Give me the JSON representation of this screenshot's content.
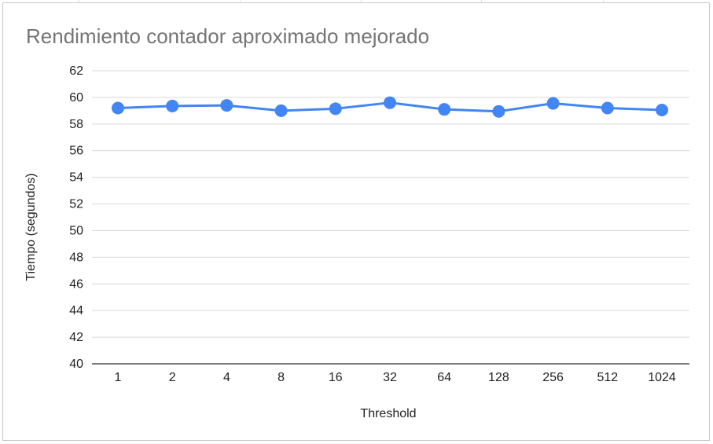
{
  "chart_data": {
    "type": "line",
    "title": "Rendimiento contador aproximado mejorado",
    "xlabel": "Threshold",
    "ylabel": "Tiempo (segundos)",
    "categories": [
      "1",
      "2",
      "4",
      "8",
      "16",
      "32",
      "64",
      "128",
      "256",
      "512",
      "1024"
    ],
    "series": [
      {
        "values": [
          59.2,
          59.35,
          59.4,
          59.0,
          59.15,
          59.6,
          59.1,
          58.95,
          59.55,
          59.2,
          59.05
        ],
        "color": "#4285f4"
      }
    ],
    "ylim": [
      40,
      62
    ],
    "yticks": [
      "40",
      "42",
      "44",
      "46",
      "48",
      "50",
      "52",
      "54",
      "56",
      "58",
      "60",
      "62"
    ],
    "grid": true,
    "legend": "none"
  },
  "colors": {
    "series": "#4285f4",
    "gridline": "#d9d9d9",
    "title": "#757575",
    "text": "#222222"
  }
}
